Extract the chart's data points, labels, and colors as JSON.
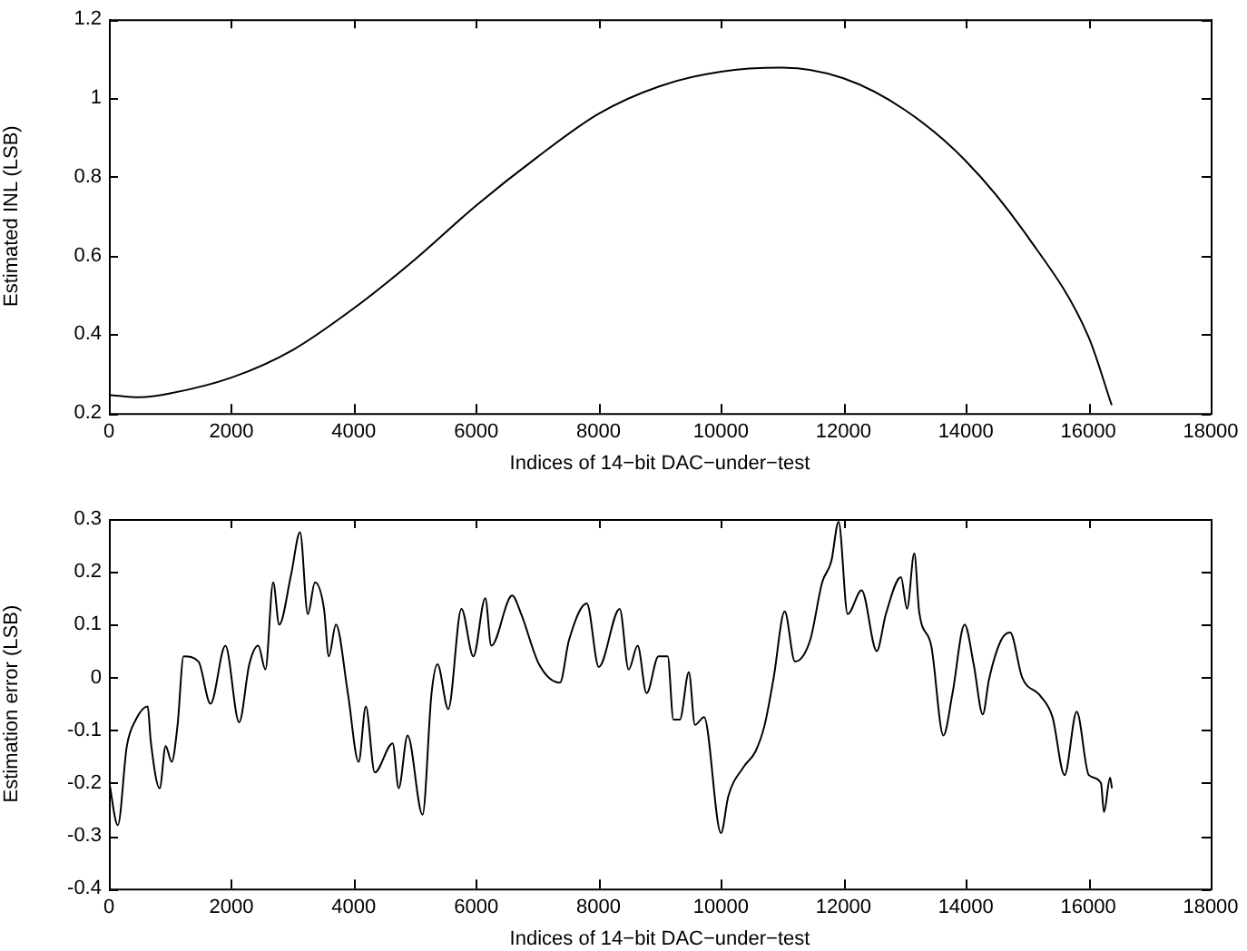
{
  "chart_data": [
    {
      "type": "line",
      "xlabel": "Indices of 14−bit DAC−under−test",
      "ylabel": "Estimated INL (LSB)",
      "xlim": [
        0,
        18000
      ],
      "xticks": [
        0,
        2000,
        4000,
        6000,
        8000,
        10000,
        12000,
        14000,
        16000,
        18000
      ],
      "ylim": [
        0.2,
        1.2
      ],
      "yticks": [
        0.2,
        0.4,
        0.6,
        0.8,
        1,
        1.2
      ],
      "grid": false,
      "legend": false,
      "marker": "none",
      "line_style": "solid",
      "series": [
        {
          "color": "#000000",
          "x": [
            0,
            500,
            1000,
            2000,
            3000,
            4000,
            5000,
            6000,
            7000,
            8000,
            9000,
            10000,
            11000,
            12000,
            13000,
            14000,
            15000,
            16000,
            16383
          ],
          "values": [
            0.246,
            0.24,
            0.25,
            0.29,
            0.36,
            0.466,
            0.59,
            0.727,
            0.85,
            0.96,
            1.03,
            1.067,
            1.077,
            1.05,
            0.97,
            0.84,
            0.65,
            0.395,
            0.22
          ]
        }
      ]
    },
    {
      "type": "line",
      "xlabel": "Indices of 14−bit DAC−under−test",
      "ylabel": "Estimation error (LSB)",
      "xlim": [
        0,
        18000
      ],
      "xticks": [
        0,
        2000,
        4000,
        6000,
        8000,
        10000,
        12000,
        14000,
        16000,
        18000
      ],
      "ylim": [
        -0.4,
        0.3
      ],
      "yticks": [
        -0.4,
        -0.3,
        -0.2,
        -0.1,
        0,
        0.1,
        0.2,
        0.3
      ],
      "grid": false,
      "legend": false,
      "marker": "none",
      "line_style": "solid",
      "series": [
        {
          "color": "#000000",
          "x": [
            0,
            146,
            293,
            440,
            634,
            683,
            830,
            927,
            1025,
            1122,
            1220,
            1464,
            1660,
            1903,
            2128,
            2294,
            2440,
            2557,
            2684,
            2782,
            2977,
            3123,
            3250,
            3367,
            3514,
            3592,
            3709,
            3904,
            4080,
            4197,
            4343,
            4636,
            4734,
            4880,
            5124,
            5271,
            5368,
            5544,
            5759,
            5954,
            6149,
            6247,
            6588,
            6735,
            7027,
            7369,
            7515,
            7808,
            8003,
            8345,
            8491,
            8638,
            8784,
            8979,
            9129,
            9223,
            9327,
            9475,
            9574,
            9723,
            10000,
            10119,
            10366,
            10564,
            10713,
            10861,
            11040,
            11208,
            11455,
            11653,
            11802,
            11921,
            12069,
            12297,
            12544,
            12693,
            12940,
            13039,
            13158,
            13237,
            13435,
            13633,
            13782,
            13980,
            14128,
            14277,
            14376,
            14574,
            14723,
            14920,
            15217,
            15415,
            15613,
            15811,
            16009,
            16207,
            16257,
            16356,
            16386
          ],
          "values": [
            -0.195,
            -0.28,
            -0.13,
            -0.08,
            -0.055,
            -0.12,
            -0.21,
            -0.13,
            -0.16,
            -0.09,
            0.04,
            0.03,
            -0.05,
            0.06,
            -0.085,
            0.025,
            0.06,
            0.015,
            0.18,
            0.1,
            0.195,
            0.275,
            0.12,
            0.18,
            0.13,
            0.04,
            0.1,
            -0.03,
            -0.16,
            -0.055,
            -0.18,
            -0.125,
            -0.21,
            -0.11,
            -0.26,
            -0.03,
            0.025,
            -0.06,
            0.13,
            0.04,
            0.15,
            0.06,
            0.155,
            0.12,
            0.025,
            -0.01,
            0.07,
            0.14,
            0.02,
            0.13,
            0.015,
            0.06,
            -0.03,
            0.04,
            0.04,
            -0.08,
            -0.08,
            0.01,
            -0.09,
            -0.075,
            -0.295,
            -0.225,
            -0.17,
            -0.14,
            -0.09,
            0.0,
            0.125,
            0.03,
            0.07,
            0.18,
            0.22,
            0.295,
            0.12,
            0.165,
            0.05,
            0.12,
            0.19,
            0.13,
            0.235,
            0.125,
            0.06,
            -0.11,
            -0.03,
            0.1,
            0.025,
            -0.07,
            -0.005,
            0.07,
            0.085,
            0.0,
            -0.035,
            -0.075,
            -0.185,
            -0.065,
            -0.185,
            -0.2,
            -0.255,
            -0.19,
            -0.21
          ]
        }
      ]
    }
  ]
}
